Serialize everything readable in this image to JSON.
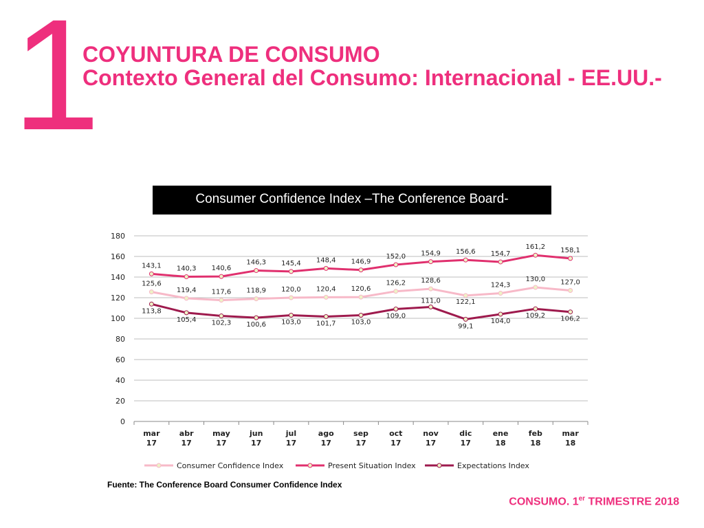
{
  "header": {
    "section_number": "1",
    "title": "COYUNTURA DE CONSUMO",
    "subtitle": "Contexto General del Consumo: Internacional - EE.UU.-"
  },
  "chart_title": "Consumer Confidence Index –The Conference Board-",
  "chart_data": {
    "type": "line",
    "categories": [
      [
        "mar",
        "17"
      ],
      [
        "abr",
        "17"
      ],
      [
        "may",
        "17"
      ],
      [
        "jun",
        "17"
      ],
      [
        "jul",
        "17"
      ],
      [
        "ago",
        "17"
      ],
      [
        "sep",
        "17"
      ],
      [
        "oct",
        "17"
      ],
      [
        "nov",
        "17"
      ],
      [
        "dic",
        "17"
      ],
      [
        "ene",
        "18"
      ],
      [
        "feb",
        "18"
      ],
      [
        "mar",
        "18"
      ]
    ],
    "ylim": [
      0,
      180
    ],
    "yticks": [
      0,
      20,
      40,
      60,
      80,
      100,
      120,
      140,
      160,
      180
    ],
    "grid": true,
    "legend_position": "bottom",
    "series": [
      {
        "name": "Consumer Confidence Index",
        "color": "#f7b9c8",
        "values": [
          125.6,
          119.4,
          117.6,
          118.9,
          120.0,
          120.4,
          120.6,
          126.2,
          128.6,
          122.1,
          124.3,
          130.0,
          127.0
        ],
        "labels": [
          "125,6",
          "119,4",
          "117,6",
          "118,9",
          "120,0",
          "120,4",
          "120,6",
          "126,2",
          "128,6",
          "122,1",
          "124,3",
          "130,0",
          "127,0"
        ]
      },
      {
        "name": "Present Situation Index",
        "color": "#e0306e",
        "values": [
          143.1,
          140.3,
          140.6,
          146.3,
          145.4,
          148.4,
          146.9,
          152.0,
          154.9,
          156.6,
          154.7,
          161.2,
          158.1
        ],
        "labels": [
          "143,1",
          "140,3",
          "140,6",
          "146,3",
          "145,4",
          "148,4",
          "146,9",
          "152,0",
          "154,9",
          "156,6",
          "154,7",
          "161,2",
          "158,1"
        ]
      },
      {
        "name": "Expectations Index",
        "color": "#9e1a4d",
        "values": [
          113.8,
          105.4,
          102.3,
          100.6,
          103.0,
          101.7,
          103.0,
          109.0,
          111.0,
          99.1,
          104.0,
          109.2,
          106.2
        ],
        "labels": [
          "113,8",
          "105,4",
          "102,3",
          "100,6",
          "103,0",
          "101,7",
          "103,0",
          "109,0",
          "111,0",
          "99,1",
          "104,0",
          "109,2",
          "106,2"
        ]
      }
    ]
  },
  "source": "Fuente: The Conference Board Consumer Confidence Index",
  "footer": {
    "text": "CONSUMO. 1",
    "sup": "er",
    "text_after": " TRIMESTRE 2018"
  }
}
